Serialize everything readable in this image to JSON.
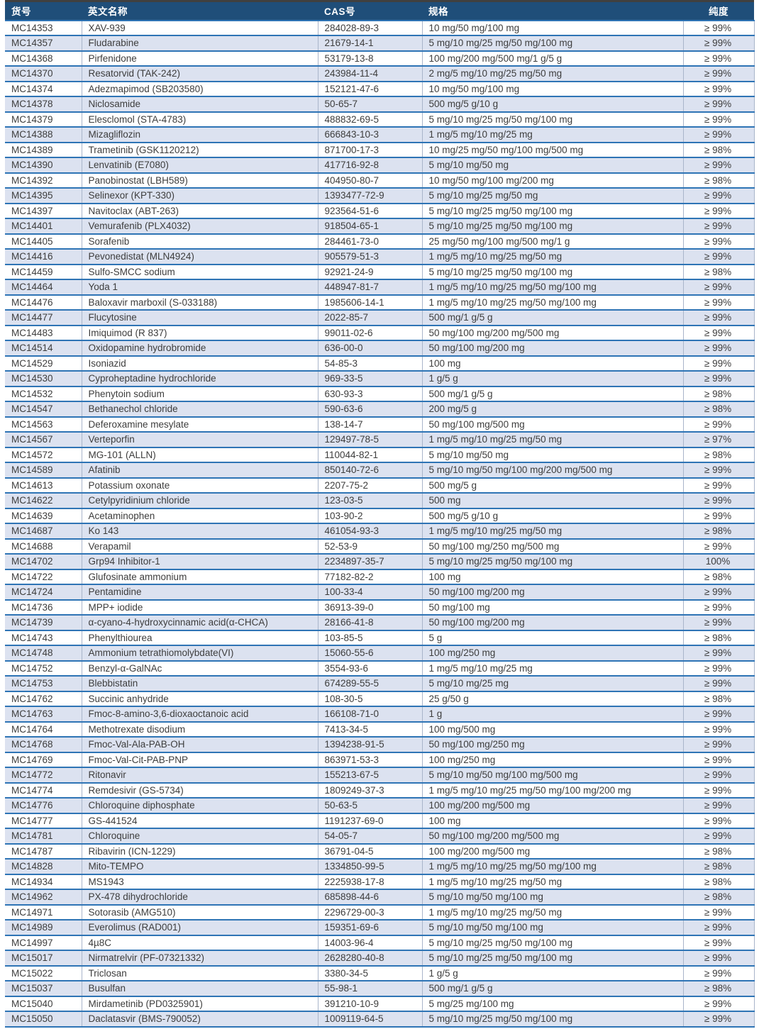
{
  "colors": {
    "header_bg": "#1F4E79",
    "header_text": "#ffffff",
    "band_bg": "#dce2f0",
    "row_separator": "#2E74B5",
    "column_grid": "#a9b5ca",
    "top_rule": "#404040",
    "body_text": "#3d3d3d"
  },
  "table": {
    "columns": [
      {
        "key": "id",
        "label": "货号"
      },
      {
        "key": "name",
        "label": "英文名称"
      },
      {
        "key": "cas",
        "label": "CAS号"
      },
      {
        "key": "spec",
        "label": "规格"
      },
      {
        "key": "purity",
        "label": "纯度"
      }
    ],
    "rows": [
      {
        "id": "MC14353",
        "name": "XAV-939",
        "cas": "284028-89-3",
        "spec": "10 mg/50 mg/100 mg",
        "purity": "≥ 99%"
      },
      {
        "id": "MC14357",
        "name": "Fludarabine",
        "cas": "21679-14-1",
        "spec": "5 mg/10 mg/25 mg/50 mg/100 mg",
        "purity": "≥ 99%"
      },
      {
        "id": "MC14368",
        "name": "Pirfenidone",
        "cas": "53179-13-8",
        "spec": "100 mg/200 mg/500 mg/1 g/5 g",
        "purity": "≥ 99%"
      },
      {
        "id": "MC14370",
        "name": "Resatorvid (TAK-242)",
        "cas": "243984-11-4",
        "spec": "2 mg/5 mg/10 mg/25 mg/50 mg",
        "purity": "≥ 99%"
      },
      {
        "id": "MC14374",
        "name": "Adezmapimod (SB203580)",
        "cas": "152121-47-6",
        "spec": "10 mg/50 mg/100 mg",
        "purity": "≥ 99%"
      },
      {
        "id": "MC14378",
        "name": "Niclosamide",
        "cas": "50-65-7",
        "spec": "500 mg/5 g/10 g",
        "purity": "≥ 99%"
      },
      {
        "id": "MC14379",
        "name": "Elesclomol (STA-4783)",
        "cas": "488832-69-5",
        "spec": "5 mg/10 mg/25 mg/50 mg/100 mg",
        "purity": "≥ 99%"
      },
      {
        "id": "MC14388",
        "name": "Mizagliflozin",
        "cas": "666843-10-3",
        "spec": "1 mg/5 mg/10 mg/25 mg",
        "purity": "≥ 99%"
      },
      {
        "id": "MC14389",
        "name": "Trametinib (GSK1120212)",
        "cas": "871700-17-3",
        "spec": "10 mg/25 mg/50 mg/100 mg/500 mg",
        "purity": "≥ 98%"
      },
      {
        "id": "MC14390",
        "name": "Lenvatinib (E7080)",
        "cas": "417716-92-8",
        "spec": "5 mg/10 mg/50 mg",
        "purity": "≥ 99%"
      },
      {
        "id": "MC14392",
        "name": "Panobinostat (LBH589)",
        "cas": "404950-80-7",
        "spec": "10 mg/50 mg/100 mg/200 mg",
        "purity": "≥ 98%"
      },
      {
        "id": "MC14395",
        "name": "Selinexor (KPT-330)",
        "cas": "1393477-72-9",
        "spec": "5 mg/10 mg/25 mg/50 mg",
        "purity": "≥ 99%"
      },
      {
        "id": "MC14397",
        "name": "Navitoclax (ABT-263)",
        "cas": "923564-51-6",
        "spec": "5 mg/10 mg/25 mg/50 mg/100 mg",
        "purity": "≥ 99%"
      },
      {
        "id": "MC14401",
        "name": "Vemurafenib (PLX4032)",
        "cas": "918504-65-1",
        "spec": "5 mg/10 mg/25 mg/50 mg/100 mg",
        "purity": "≥ 99%"
      },
      {
        "id": "MC14405",
        "name": "Sorafenib",
        "cas": "284461-73-0",
        "spec": "25 mg/50 mg/100 mg/500 mg/1 g",
        "purity": "≥ 99%"
      },
      {
        "id": "MC14416",
        "name": "Pevonedistat (MLN4924)",
        "cas": "905579-51-3",
        "spec": "1 mg/5 mg/10 mg/25 mg/50 mg",
        "purity": "≥ 99%"
      },
      {
        "id": "MC14459",
        "name": "Sulfo-SMCC sodium",
        "cas": "92921-24-9",
        "spec": "5 mg/10 mg/25 mg/50 mg/100 mg",
        "purity": "≥ 98%"
      },
      {
        "id": "MC14464",
        "name": "Yoda 1",
        "cas": "448947-81-7",
        "spec": "1 mg/5 mg/10 mg/25 mg/50 mg/100 mg",
        "purity": "≥ 99%"
      },
      {
        "id": "MC14476",
        "name": "Baloxavir marboxil (S-033188)",
        "cas": "1985606-14-1",
        "spec": "1 mg/5 mg/10 mg/25 mg/50 mg/100 mg",
        "purity": "≥ 99%"
      },
      {
        "id": "MC14477",
        "name": "Flucytosine",
        "cas": "2022-85-7",
        "spec": "500 mg/1 g/5 g",
        "purity": "≥ 99%"
      },
      {
        "id": "MC14483",
        "name": "Imiquimod (R 837)",
        "cas": "99011-02-6",
        "spec": "50 mg/100 mg/200 mg/500 mg",
        "purity": "≥ 99%"
      },
      {
        "id": "MC14514",
        "name": "Oxidopamine hydrobromide",
        "cas": "636-00-0",
        "spec": "50 mg/100 mg/200 mg",
        "purity": "≥ 99%"
      },
      {
        "id": "MC14529",
        "name": "Isoniazid",
        "cas": "54-85-3",
        "spec": "100 mg",
        "purity": "≥ 99%"
      },
      {
        "id": "MC14530",
        "name": "Cyproheptadine hydrochloride",
        "cas": "969-33-5",
        "spec": "1 g/5 g",
        "purity": "≥ 99%"
      },
      {
        "id": "MC14532",
        "name": "Phenytoin sodium",
        "cas": "630-93-3",
        "spec": "500 mg/1 g/5 g",
        "purity": "≥ 98%"
      },
      {
        "id": "MC14547",
        "name": "Bethanechol chloride",
        "cas": "590-63-6",
        "spec": "200 mg/5 g",
        "purity": "≥ 98%"
      },
      {
        "id": "MC14563",
        "name": "Deferoxamine mesylate",
        "cas": "138-14-7",
        "spec": "50 mg/100 mg/500 mg",
        "purity": "≥ 99%"
      },
      {
        "id": "MC14567",
        "name": "Verteporfin",
        "cas": "129497-78-5",
        "spec": "1 mg/5 mg/10 mg/25 mg/50 mg",
        "purity": "≥ 97%"
      },
      {
        "id": "MC14572",
        "name": "MG-101 (ALLN)",
        "cas": "110044-82-1",
        "spec": "5 mg/10 mg/50 mg",
        "purity": "≥ 98%"
      },
      {
        "id": "MC14589",
        "name": "Afatinib",
        "cas": "850140-72-6",
        "spec": "5 mg/10 mg/50 mg/100 mg/200 mg/500 mg",
        "purity": "≥ 99%"
      },
      {
        "id": "MC14613",
        "name": "Potassium oxonate",
        "cas": "2207-75-2",
        "spec": "500 mg/5 g",
        "purity": "≥ 99%"
      },
      {
        "id": "MC14622",
        "name": "Cetylpyridinium chloride",
        "cas": "123-03-5",
        "spec": "500 mg",
        "purity": "≥ 99%"
      },
      {
        "id": "MC14639",
        "name": "Acetaminophen",
        "cas": "103-90-2",
        "spec": "500 mg/5 g/10 g",
        "purity": "≥ 99%"
      },
      {
        "id": "MC14687",
        "name": "Ko 143",
        "cas": "461054-93-3",
        "spec": "1 mg/5 mg/10 mg/25 mg/50 mg",
        "purity": "≥ 98%"
      },
      {
        "id": "MC14688",
        "name": "Verapamil",
        "cas": "52-53-9",
        "spec": "50 mg/100 mg/250 mg/500 mg",
        "purity": "≥ 99%"
      },
      {
        "id": "MC14702",
        "name": "Grp94 Inhibitor-1",
        "cas": "2234897-35-7",
        "spec": "5 mg/10 mg/25 mg/50 mg/100 mg",
        "purity": "100%"
      },
      {
        "id": "MC14722",
        "name": "Glufosinate ammonium",
        "cas": "77182-82-2",
        "spec": "100 mg",
        "purity": "≥ 98%"
      },
      {
        "id": "MC14724",
        "name": "Pentamidine",
        "cas": "100-33-4",
        "spec": "50 mg/100 mg/200 mg",
        "purity": "≥ 99%"
      },
      {
        "id": "MC14736",
        "name": "MPP+ iodide",
        "cas": "36913-39-0",
        "spec": "50 mg/100 mg",
        "purity": "≥ 99%"
      },
      {
        "id": "MC14739",
        "name": "α-cyano-4-hydroxycinnamic acid(α-CHCA)",
        "cas": "28166-41-8",
        "spec": "50 mg/100 mg/200 mg",
        "purity": "≥ 99%"
      },
      {
        "id": "MC14743",
        "name": "Phenylthiourea",
        "cas": "103-85-5",
        "spec": "5 g",
        "purity": "≥ 98%"
      },
      {
        "id": "MC14748",
        "name": "Ammonium tetrathiomolybdate(VI)",
        "cas": "15060-55-6",
        "spec": "100 mg/250 mg",
        "purity": "≥ 99%"
      },
      {
        "id": "MC14752",
        "name": "Benzyl-α-GalNAc",
        "cas": "3554-93-6",
        "spec": "1 mg/5 mg/10 mg/25 mg",
        "purity": "≥ 99%"
      },
      {
        "id": "MC14753",
        "name": "Blebbistatin",
        "cas": "674289-55-5",
        "spec": "5 mg/10 mg/25 mg",
        "purity": "≥ 99%"
      },
      {
        "id": "MC14762",
        "name": "Succinic anhydride",
        "cas": "108-30-5",
        "spec": "25 g/50 g",
        "purity": "≥ 98%"
      },
      {
        "id": "MC14763",
        "name": "Fmoc-8-amino-3,6-dioxaoctanoic acid",
        "cas": "166108-71-0",
        "spec": "1 g",
        "purity": "≥ 99%"
      },
      {
        "id": "MC14764",
        "name": "Methotrexate disodium",
        "cas": "7413-34-5",
        "spec": "100 mg/500 mg",
        "purity": "≥ 99%"
      },
      {
        "id": "MC14768",
        "name": "Fmoc-Val-Ala-PAB-OH",
        "cas": "1394238-91-5",
        "spec": "50 mg/100 mg/250 mg",
        "purity": "≥ 99%"
      },
      {
        "id": "MC14769",
        "name": "Fmoc-Val-Cit-PAB-PNP",
        "cas": "863971-53-3",
        "spec": "100 mg/250 mg",
        "purity": "≥ 99%"
      },
      {
        "id": "MC14772",
        "name": "Ritonavir",
        "cas": "155213-67-5",
        "spec": "5 mg/10 mg/50 mg/100 mg/500 mg",
        "purity": "≥ 99%"
      },
      {
        "id": "MC14774",
        "name": "Remdesivir (GS-5734)",
        "cas": "1809249-37-3",
        "spec": "1 mg/5 mg/10 mg/25 mg/50 mg/100 mg/200 mg",
        "purity": "≥ 99%"
      },
      {
        "id": "MC14776",
        "name": "Chloroquine diphosphate",
        "cas": "50-63-5",
        "spec": "100 mg/200 mg/500 mg",
        "purity": "≥ 99%"
      },
      {
        "id": "MC14777",
        "name": "GS-441524",
        "cas": "1191237-69-0",
        "spec": "100 mg",
        "purity": "≥ 99%"
      },
      {
        "id": "MC14781",
        "name": "Chloroquine",
        "cas": "54-05-7",
        "spec": "50 mg/100 mg/200 mg/500 mg",
        "purity": "≥ 99%"
      },
      {
        "id": "MC14787",
        "name": "Ribavirin (ICN-1229)",
        "cas": "36791-04-5",
        "spec": "100 mg/200 mg/500 mg",
        "purity": "≥ 98%"
      },
      {
        "id": "MC14828",
        "name": "Mito-TEMPO",
        "cas": "1334850-99-5",
        "spec": "1 mg/5 mg/10 mg/25 mg/50 mg/100 mg",
        "purity": "≥ 98%"
      },
      {
        "id": "MC14934",
        "name": "MS1943",
        "cas": "2225938-17-8",
        "spec": "1 mg/5 mg/10 mg/25 mg/50 mg",
        "purity": "≥ 98%"
      },
      {
        "id": "MC14962",
        "name": "PX-478 dihydrochloride",
        "cas": "685898-44-6",
        "spec": "5 mg/10 mg/50 mg/100 mg",
        "purity": "≥ 98%"
      },
      {
        "id": "MC14971",
        "name": "Sotorasib (AMG510)",
        "cas": "2296729-00-3",
        "spec": "1 mg/5 mg/10 mg/25 mg/50 mg",
        "purity": "≥ 99%"
      },
      {
        "id": "MC14989",
        "name": "Everolimus (RAD001)",
        "cas": "159351-69-6",
        "spec": "5 mg/10 mg/50 mg/100 mg",
        "purity": "≥ 99%"
      },
      {
        "id": "MC14997",
        "name": "4µ8C",
        "cas": "14003-96-4",
        "spec": "5 mg/10 mg/25 mg/50 mg/100 mg",
        "purity": "≥ 99%"
      },
      {
        "id": "MC15017",
        "name": "Nirmatrelvir (PF-07321332)",
        "cas": "2628280-40-8",
        "spec": "5 mg/10 mg/25 mg/50 mg/100 mg",
        "purity": "≥ 99%"
      },
      {
        "id": "MC15022",
        "name": "Triclosan",
        "cas": "3380-34-5",
        "spec": "1 g/5 g",
        "purity": "≥ 99%"
      },
      {
        "id": "MC15037",
        "name": "Busulfan",
        "cas": "55-98-1",
        "spec": "500 mg/1 g/5 g",
        "purity": "≥ 98%"
      },
      {
        "id": "MC15040",
        "name": "Mirdametinib (PD0325901)",
        "cas": "391210-10-9",
        "spec": "5 mg/25 mg/100 mg",
        "purity": "≥ 99%"
      },
      {
        "id": "MC15050",
        "name": "Daclatasvir (BMS-790052)",
        "cas": "1009119-64-5",
        "spec": "5 mg/10 mg/25 mg/50 mg/100 mg",
        "purity": "≥ 99%"
      }
    ]
  }
}
